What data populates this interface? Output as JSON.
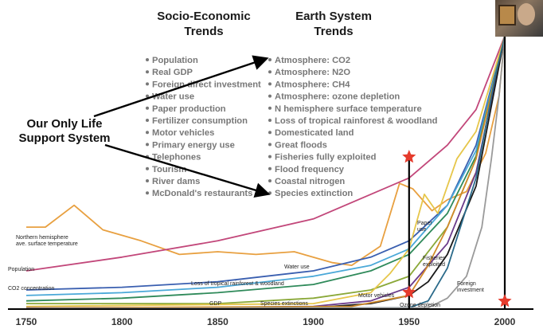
{
  "headings": {
    "socio": [
      "Socio-Economic",
      "Trends"
    ],
    "earth": [
      "Earth System",
      "Trends"
    ]
  },
  "socio_items": [
    "Population",
    "Real GDP",
    "Foreign direct investment",
    "Water use",
    "Paper production",
    "Fertilizer consumption",
    "Motor vehicles",
    "Primary energy use",
    "Telephones",
    "Tourism",
    "River dams",
    "McDonald's restaurants"
  ],
  "earth_items": [
    "Atmosphere: CO2",
    "Atmosphere: N2O",
    "Atmosphere: CH4",
    "Atmosphere: ozone depletion",
    "N hemisphere surface temperature",
    "Loss of tropical rainforest & woodland",
    "Domesticated land",
    "Great floods",
    "Fisheries fully exploited",
    "Flood frequency",
    "Coastal nitrogen",
    "Species extinction"
  ],
  "callout": [
    "Our Only Life",
    "Support System"
  ],
  "colors": {
    "star": "#e53b2c",
    "axis": "#000000"
  },
  "chart_data": {
    "type": "line",
    "xlim": [
      1750,
      2000
    ],
    "ylim": [
      0,
      100
    ],
    "x_ticks": [
      "1750",
      "1800",
      "1850",
      "1900",
      "1950",
      "2000"
    ],
    "grid": false,
    "vertical_markers": [
      1950,
      2000
    ],
    "series": [
      {
        "name": "Northern hemisphere ave. surface temperature",
        "color": "#e8a040",
        "label_lines": [
          "Northern hemisphere",
          "ave. surface temperature"
        ],
        "points": [
          [
            1750,
            30
          ],
          [
            1760,
            30
          ],
          [
            1775,
            38
          ],
          [
            1790,
            29
          ],
          [
            1810,
            25
          ],
          [
            1830,
            20
          ],
          [
            1850,
            21
          ],
          [
            1870,
            20
          ],
          [
            1890,
            21
          ],
          [
            1910,
            17
          ],
          [
            1920,
            16
          ],
          [
            1935,
            23
          ],
          [
            1945,
            46
          ],
          [
            1952,
            44
          ],
          [
            1962,
            36
          ],
          [
            1970,
            40
          ],
          [
            1980,
            43
          ],
          [
            1990,
            57
          ],
          [
            1997,
            78
          ],
          [
            2000,
            100
          ]
        ]
      },
      {
        "name": "Population",
        "color": "#c2477a",
        "label_lines": [
          "Population"
        ],
        "points": [
          [
            1750,
            14
          ],
          [
            1800,
            19
          ],
          [
            1850,
            25
          ],
          [
            1900,
            33
          ],
          [
            1950,
            48
          ],
          [
            1970,
            60
          ],
          [
            1985,
            73
          ],
          [
            2000,
            100
          ]
        ]
      },
      {
        "name": "CO2 concentration",
        "color": "#3a5fb0",
        "label_lines": [
          "CO2 concentration"
        ],
        "points": [
          [
            1750,
            7
          ],
          [
            1800,
            8
          ],
          [
            1850,
            10
          ],
          [
            1900,
            14
          ],
          [
            1930,
            19
          ],
          [
            1950,
            25
          ],
          [
            1970,
            38
          ],
          [
            1985,
            60
          ],
          [
            2000,
            100
          ]
        ]
      },
      {
        "name": "Water use",
        "color": "#4aa8d8",
        "label_lines": [
          "Water use"
        ],
        "points": [
          [
            1750,
            5
          ],
          [
            1800,
            6
          ],
          [
            1850,
            8
          ],
          [
            1900,
            12
          ],
          [
            1930,
            16
          ],
          [
            1950,
            22
          ],
          [
            1970,
            38
          ],
          [
            1985,
            58
          ],
          [
            2000,
            100
          ]
        ]
      },
      {
        "name": "Loss of tropical rainforest & woodland",
        "color": "#2f8a5a",
        "label_lines": [
          "Loss of tropical rainforest & woodland"
        ],
        "points": [
          [
            1750,
            3
          ],
          [
            1800,
            4
          ],
          [
            1850,
            6
          ],
          [
            1900,
            9
          ],
          [
            1930,
            14
          ],
          [
            1950,
            20
          ],
          [
            1970,
            35
          ],
          [
            1985,
            56
          ],
          [
            2000,
            100
          ]
        ]
      },
      {
        "name": "GDP",
        "color": "#8aa838",
        "label_lines": [
          "GDP"
        ],
        "points": [
          [
            1750,
            2
          ],
          [
            1800,
            2
          ],
          [
            1850,
            2
          ],
          [
            1900,
            4
          ],
          [
            1930,
            7
          ],
          [
            1950,
            12
          ],
          [
            1970,
            30
          ],
          [
            1985,
            55
          ],
          [
            2000,
            100
          ]
        ]
      },
      {
        "name": "Paper use",
        "color": "#e6c64a",
        "label_lines": [
          "Paper",
          "use"
        ],
        "points": [
          [
            1750,
            1
          ],
          [
            1900,
            2
          ],
          [
            1930,
            6
          ],
          [
            1940,
            13
          ],
          [
            1950,
            22
          ],
          [
            1958,
            42
          ],
          [
            1965,
            35
          ],
          [
            1975,
            55
          ],
          [
            1985,
            65
          ],
          [
            2000,
            100
          ]
        ]
      },
      {
        "name": "Species extinctions",
        "color": "#6a3a8a",
        "label_lines": [
          "Species extinctions"
        ],
        "points": [
          [
            1750,
            0.5
          ],
          [
            1850,
            0.6
          ],
          [
            1900,
            1
          ],
          [
            1930,
            3
          ],
          [
            1950,
            8
          ],
          [
            1970,
            24
          ],
          [
            1985,
            50
          ],
          [
            2000,
            100
          ]
        ]
      },
      {
        "name": "Motor vehicles",
        "color": "#1a1a1a",
        "label_lines": [
          "Motor vehicles"
        ],
        "points": [
          [
            1750,
            0.3
          ],
          [
            1900,
            0.5
          ],
          [
            1930,
            2
          ],
          [
            1950,
            5
          ],
          [
            1960,
            10
          ],
          [
            1970,
            20
          ],
          [
            1985,
            45
          ],
          [
            2000,
            100
          ]
        ]
      },
      {
        "name": "Fisheries exploited",
        "color": "#d08a2a",
        "label_lines": [
          "Fisheries",
          "exploited"
        ],
        "points": [
          [
            1750,
            0.4
          ],
          [
            1920,
            1
          ],
          [
            1950,
            5
          ],
          [
            1960,
            16
          ],
          [
            1970,
            30
          ],
          [
            1985,
            55
          ],
          [
            2000,
            100
          ]
        ]
      },
      {
        "name": "Ozone depletion",
        "color": "#2a6a8a",
        "label_lines": [
          "Ozone depletion"
        ],
        "points": [
          [
            1750,
            0.2
          ],
          [
            1950,
            0.5
          ],
          [
            1960,
            3
          ],
          [
            1970,
            15
          ],
          [
            1985,
            48
          ],
          [
            1995,
            85
          ],
          [
            2000,
            100
          ]
        ]
      },
      {
        "name": "Foreign investment",
        "color": "#9a9a9a",
        "label_lines": [
          "Foreign",
          "investment"
        ],
        "points": [
          [
            1750,
            0.2
          ],
          [
            1960,
            0.5
          ],
          [
            1970,
            4
          ],
          [
            1980,
            12
          ],
          [
            1988,
            30
          ],
          [
            1993,
            55
          ],
          [
            1997,
            78
          ],
          [
            2000,
            100
          ]
        ]
      }
    ]
  }
}
